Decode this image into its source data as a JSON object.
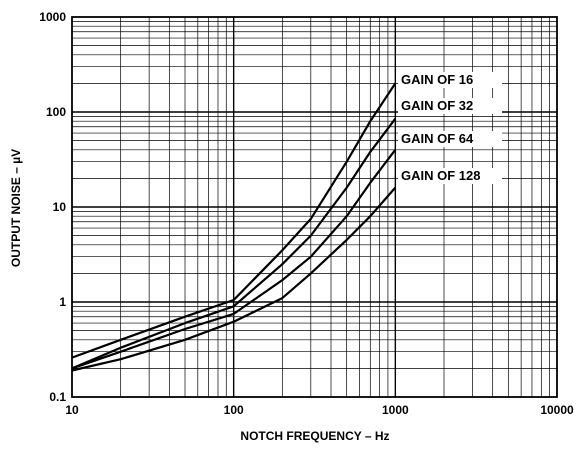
{
  "chart_data": {
    "type": "line",
    "xscale": "log",
    "yscale": "log",
    "xlim": [
      10,
      10000
    ],
    "ylim": [
      0.1,
      1000
    ],
    "xlabel": "NOTCH FREQUENCY – Hz",
    "ylabel": "OUTPUT NOISE – µV",
    "x_tick_labels": [
      "10",
      "100",
      "1000",
      "10000"
    ],
    "y_tick_labels": [
      "0.1",
      "1",
      "10",
      "100",
      "1000"
    ],
    "grid": true,
    "series": [
      {
        "name": "GAIN OF 16",
        "x": [
          10,
          20,
          50,
          100,
          200,
          300,
          500,
          700,
          1000
        ],
        "y": [
          0.26,
          0.4,
          0.7,
          1.05,
          3.5,
          7.5,
          30,
          80,
          200
        ]
      },
      {
        "name": "GAIN OF 32",
        "x": [
          10,
          20,
          50,
          100,
          200,
          300,
          500,
          700,
          1000
        ],
        "y": [
          0.2,
          0.33,
          0.6,
          0.9,
          2.5,
          5,
          16,
          38,
          85
        ]
      },
      {
        "name": "GAIN OF 64",
        "x": [
          10,
          20,
          50,
          100,
          200,
          300,
          500,
          700,
          1000
        ],
        "y": [
          0.2,
          0.3,
          0.52,
          0.75,
          1.7,
          3,
          8,
          18,
          40
        ]
      },
      {
        "name": "GAIN OF 128",
        "x": [
          10,
          20,
          50,
          100,
          200,
          300,
          500,
          700,
          1000
        ],
        "y": [
          0.19,
          0.25,
          0.4,
          0.62,
          1.1,
          2,
          4.5,
          8,
          16
        ]
      }
    ]
  }
}
